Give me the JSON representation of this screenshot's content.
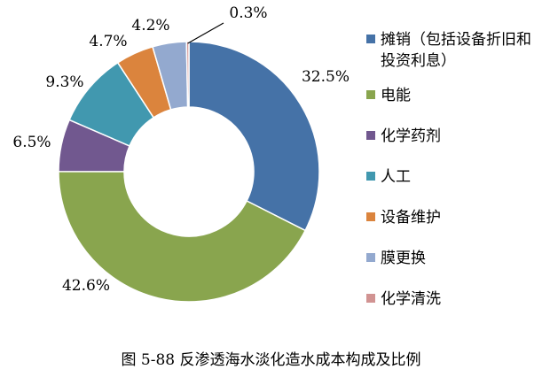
{
  "chart_data": {
    "type": "pie",
    "donut": true,
    "labels": [
      "摊销（包括设备折旧和投资利息）",
      "电能",
      "化学药剂",
      "人工",
      "设备维护",
      "膜更换",
      "化学清洗"
    ],
    "values": [
      32.5,
      42.6,
      6.5,
      9.3,
      4.7,
      4.2,
      0.3
    ],
    "value_labels": [
      "32.5%",
      "42.6%",
      "6.5%",
      "9.3%",
      "4.7%",
      "4.2%",
      "0.3%"
    ],
    "colors": [
      "#4572A7",
      "#89A54E",
      "#71588F",
      "#4198AF",
      "#DB843D",
      "#93A9CF",
      "#D19392"
    ],
    "legend_position": "right"
  },
  "caption": "图 5-88 反渗透海水淡化造水成本构成及比例"
}
